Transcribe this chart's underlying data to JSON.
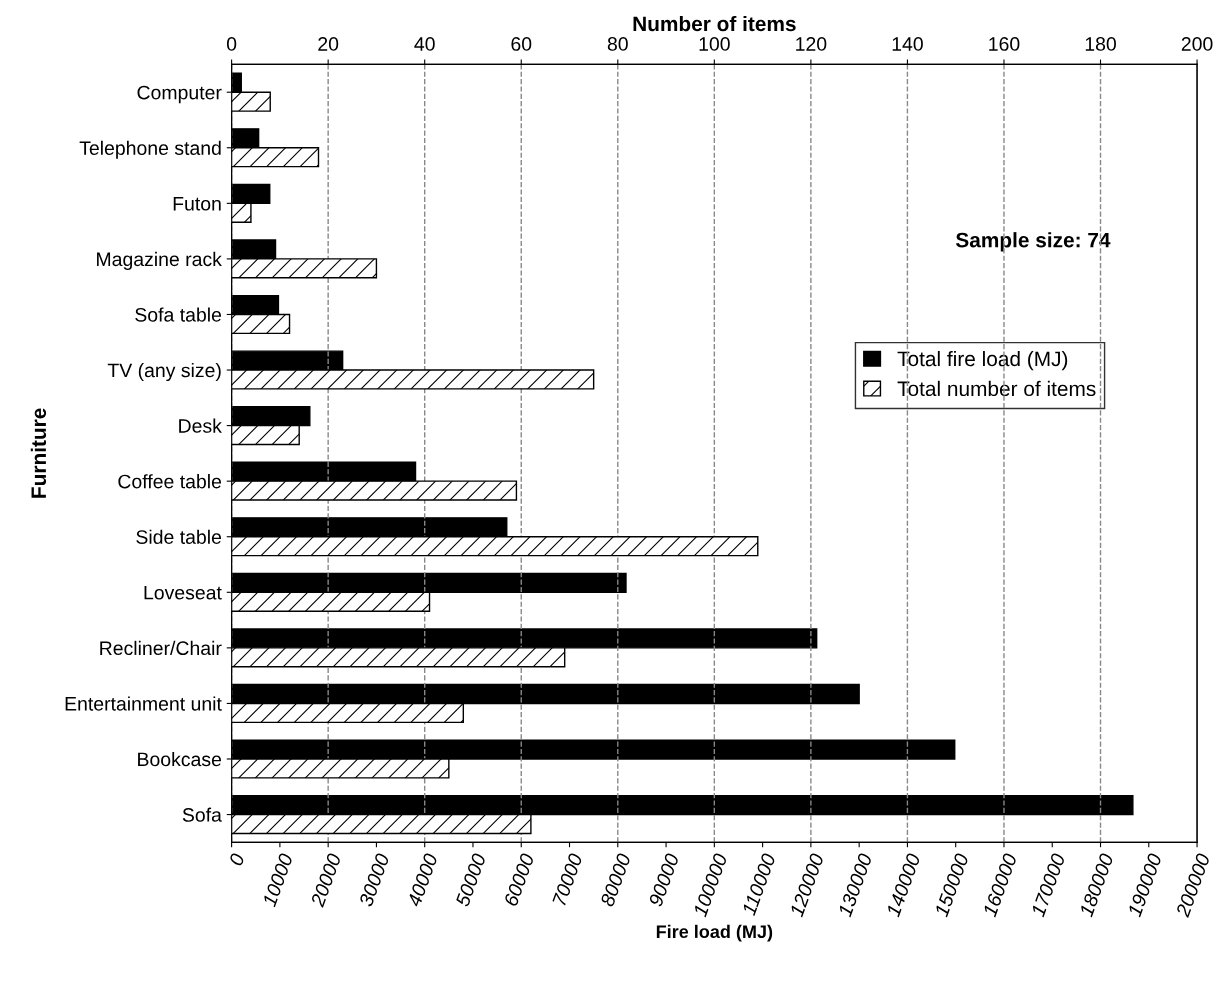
{
  "chart_data": {
    "type": "bar",
    "orientation": "horizontal",
    "ylabel": "Furniture",
    "xlabel": "Fire load (MJ)",
    "x2label": "Number of items",
    "categories": [
      "Computer",
      "Telephone stand",
      "Futon",
      "Magazine rack",
      "Sofa table",
      "TV (any size)",
      "Desk",
      "Coffee table",
      "Side table",
      "Loveseat",
      "Recliner/Chair",
      "Entertainment unit",
      "Bookcase",
      "Sofa"
    ],
    "series": [
      {
        "name": "Total fire load (MJ)",
        "color": "#000000",
        "values": [
          2000,
          5600,
          7900,
          9100,
          9700,
          23000,
          16200,
          38100,
          57000,
          81700,
          121200,
          130000,
          149800,
          186700
        ]
      },
      {
        "name": "Total number of items",
        "color": "#000000",
        "axis": "x2",
        "values": [
          8,
          18,
          4,
          30,
          12,
          75,
          14,
          59,
          109,
          41,
          69,
          48,
          45,
          62
        ]
      }
    ],
    "xlim": [
      0,
      200000
    ],
    "xticks": [
      0,
      10000,
      20000,
      30000,
      40000,
      50000,
      60000,
      70000,
      80000,
      90000,
      100000,
      110000,
      120000,
      130000,
      140000,
      150000,
      160000,
      170000,
      180000,
      190000,
      200000
    ],
    "x2lim": [
      0,
      200
    ],
    "x2ticks": [
      0,
      20,
      40,
      60,
      80,
      100,
      120,
      140,
      160,
      180,
      200
    ],
    "grid": "x2",
    "legend": "right",
    "annotations": [
      "Sample size: 74"
    ]
  }
}
